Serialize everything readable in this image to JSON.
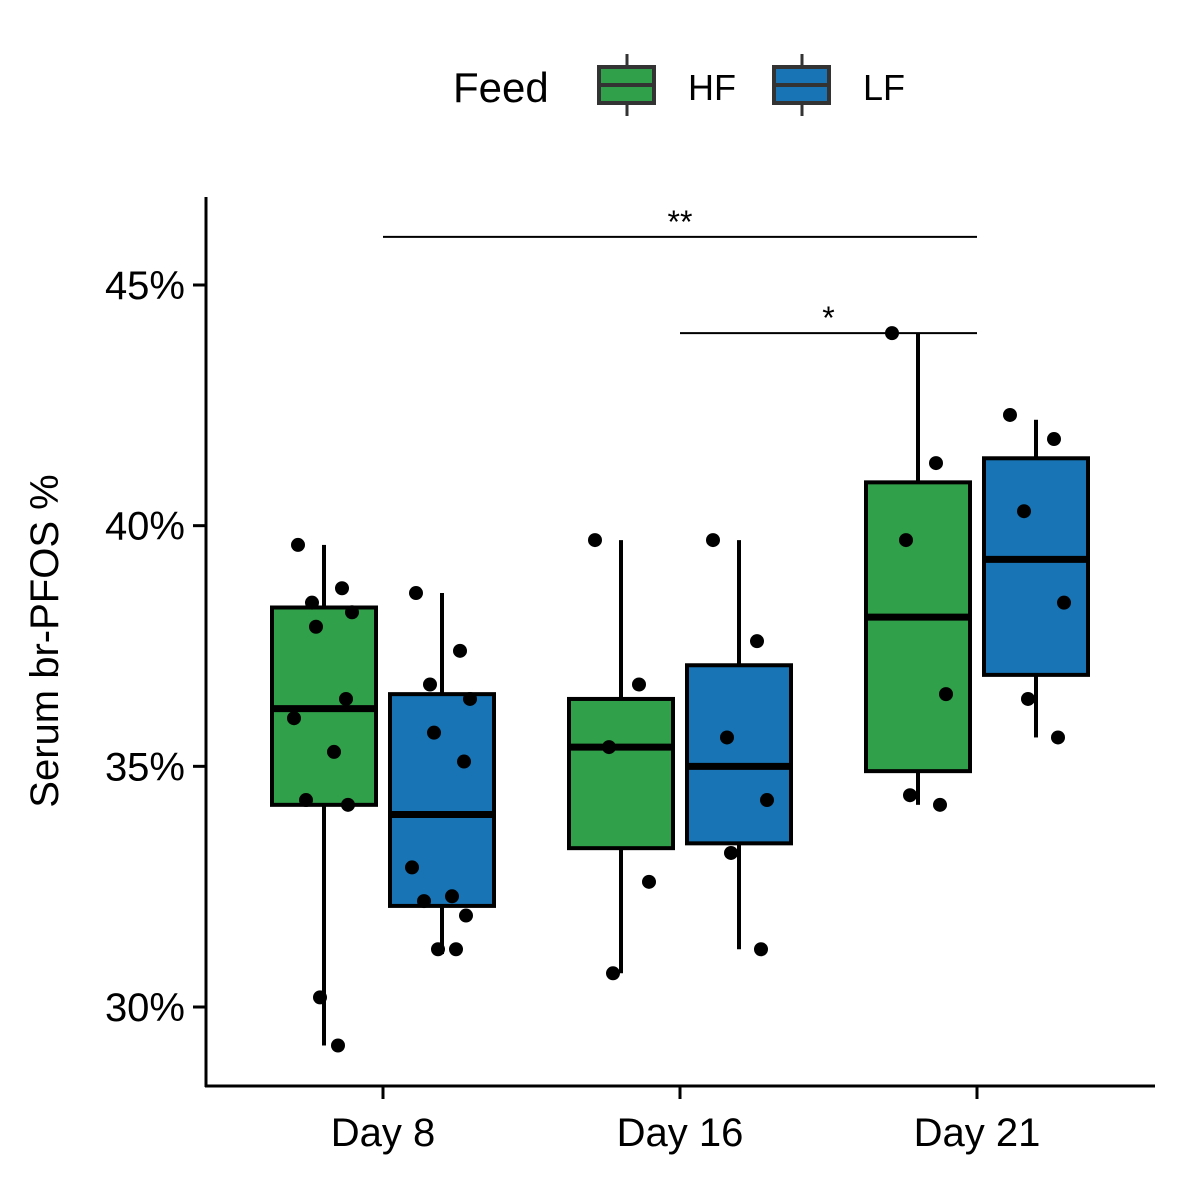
{
  "chart_data": {
    "type": "boxplot",
    "ylabel": "Serum br-PFOS %",
    "xlabel": "",
    "categories": [
      "Day 8",
      "Day 16",
      "Day 21"
    ],
    "y_ticks": [
      "30%",
      "35%",
      "40%",
      "45%"
    ],
    "y_tick_values": [
      30,
      35,
      40,
      45
    ],
    "ylim": [
      28.3,
      46.8
    ],
    "legend": {
      "title": "Feed",
      "position": "top",
      "entries": [
        {
          "name": "HF",
          "color": "#31a04a"
        },
        {
          "name": "LF",
          "color": "#1874b4"
        }
      ]
    },
    "series": [
      {
        "name": "HF",
        "color": "#31a04a",
        "boxes": [
          {
            "category": "Day 8",
            "whisker_low": 29.2,
            "q1": 34.2,
            "median": 36.2,
            "q3": 38.3,
            "whisker_high": 39.6
          },
          {
            "category": "Day 16",
            "whisker_low": 30.7,
            "q1": 33.3,
            "median": 35.4,
            "q3": 36.4,
            "whisker_high": 39.7
          },
          {
            "category": "Day 21",
            "whisker_low": 34.2,
            "q1": 34.9,
            "median": 38.1,
            "q3": 40.9,
            "whisker_high": 44.0
          }
        ],
        "points": [
          {
            "category": "Day 8",
            "values": [
              39.6,
              38.7,
              38.4,
              38.2,
              37.9,
              36.4,
              36.0,
              35.3,
              34.3,
              34.2,
              30.2,
              29.2
            ]
          },
          {
            "category": "Day 16",
            "values": [
              39.7,
              36.7,
              35.4,
              32.6,
              30.7
            ]
          },
          {
            "category": "Day 21",
            "values": [
              44.0,
              41.3,
              39.7,
              36.5,
              34.4,
              34.2
            ]
          }
        ]
      },
      {
        "name": "LF",
        "color": "#1874b4",
        "boxes": [
          {
            "category": "Day 8",
            "whisker_low": 31.1,
            "q1": 32.1,
            "median": 34.0,
            "q3": 36.5,
            "whisker_high": 38.6
          },
          {
            "category": "Day 16",
            "whisker_low": 31.2,
            "q1": 33.4,
            "median": 35.0,
            "q3": 37.1,
            "whisker_high": 39.7
          },
          {
            "category": "Day 21",
            "whisker_low": 35.6,
            "q1": 36.9,
            "median": 39.3,
            "q3": 41.4,
            "whisker_high": 42.2
          }
        ],
        "points": [
          {
            "category": "Day 8",
            "values": [
              38.6,
              37.4,
              36.7,
              36.4,
              35.7,
              35.1,
              32.9,
              32.3,
              32.2,
              31.9,
              31.2,
              31.2
            ]
          },
          {
            "category": "Day 16",
            "values": [
              39.7,
              37.6,
              35.6,
              34.3,
              33.2,
              31.2
            ]
          },
          {
            "category": "Day 21",
            "values": [
              42.3,
              41.8,
              40.3,
              38.4,
              36.4,
              35.6
            ]
          }
        ]
      }
    ],
    "annotations": [
      {
        "label": "**",
        "from": "Day 8",
        "to": "Day 21",
        "y": 46.0
      },
      {
        "label": "*",
        "from": "Day 16",
        "to": "Day 21",
        "y": 44.0
      }
    ]
  }
}
